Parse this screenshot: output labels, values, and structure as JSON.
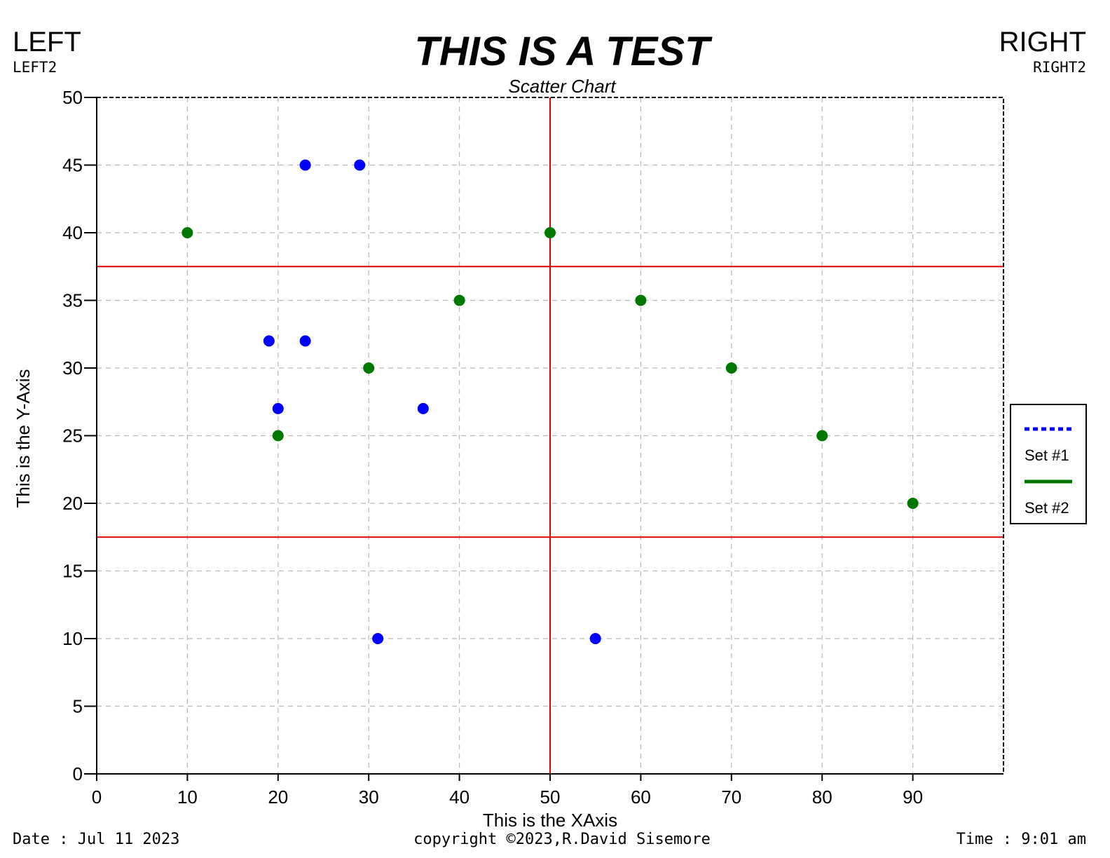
{
  "header": {
    "left": "LEFT",
    "left2": "LEFT2",
    "right": "RIGHT",
    "right2": "RIGHT2"
  },
  "footer": {
    "date": "Date : Jul 11 2023",
    "copyright": "copyright ©2023,R.David Sisemore",
    "time": "Time : 9:01 am"
  },
  "chart_data": {
    "type": "scatter",
    "title": "THIS IS A TEST",
    "subtitle": "Scatter Chart",
    "xlabel": "This is the XAxis",
    "ylabel": "This is the Y-Axis",
    "xlim": [
      0,
      100
    ],
    "ylim": [
      0,
      50
    ],
    "xticks": [
      0,
      10,
      20,
      30,
      40,
      50,
      60,
      70,
      80,
      90
    ],
    "yticks": [
      0,
      5,
      10,
      15,
      20,
      25,
      30,
      35,
      40,
      45,
      50
    ],
    "grid": true,
    "legend_position": "right",
    "reference_lines": {
      "vertical_x": [
        50
      ],
      "horizontal_y": [
        37.5,
        17.5
      ],
      "color": "#e00000"
    },
    "series": [
      {
        "name": "Set #1",
        "color": "#0000ff",
        "legend_style": "dotted",
        "points": [
          [
            23,
            45
          ],
          [
            29,
            45
          ],
          [
            19,
            32
          ],
          [
            23,
            32
          ],
          [
            20,
            27
          ],
          [
            36,
            27
          ],
          [
            31,
            10
          ],
          [
            55,
            10
          ]
        ]
      },
      {
        "name": "Set #2",
        "color": "#007800",
        "legend_style": "solid",
        "points": [
          [
            10,
            40
          ],
          [
            50,
            40
          ],
          [
            40,
            35
          ],
          [
            60,
            35
          ],
          [
            30,
            30
          ],
          [
            70,
            30
          ],
          [
            20,
            25
          ],
          [
            80,
            25
          ],
          [
            90,
            20
          ]
        ]
      }
    ]
  }
}
